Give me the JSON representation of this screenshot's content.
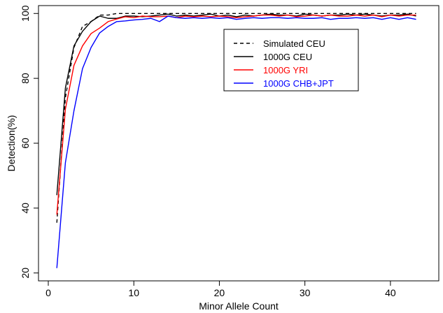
{
  "chart_data": {
    "type": "line",
    "title": "",
    "xlabel": "Minor Allele Count",
    "ylabel": "Detection(%)",
    "xlim": [
      0,
      45
    ],
    "ylim": [
      18,
      102
    ],
    "x_ticks": [
      0,
      10,
      20,
      30,
      40
    ],
    "y_ticks": [
      20,
      40,
      60,
      80,
      100
    ],
    "grid": false,
    "legend_position": "top-right",
    "x": [
      1,
      2,
      3,
      4,
      5,
      6,
      7,
      8,
      9,
      10,
      11,
      12,
      13,
      14,
      15,
      16,
      17,
      18,
      19,
      20,
      21,
      22,
      23,
      24,
      25,
      26,
      27,
      28,
      29,
      30,
      31,
      32,
      33,
      34,
      35,
      36,
      37,
      38,
      39,
      40,
      41,
      42,
      43
    ],
    "series": [
      {
        "name": "Simulated CEU",
        "color": "#000000",
        "dash": "dashed",
        "values": [
          35.5,
          74,
          89.5,
          96,
          97.5,
          99.5,
          99.5,
          100,
          100,
          100,
          100,
          100,
          100,
          100,
          100,
          100,
          100,
          100,
          100,
          100,
          100,
          100,
          100,
          100,
          100,
          100,
          100,
          100,
          100,
          100,
          100,
          100,
          100,
          100,
          100,
          100,
          100,
          100,
          100,
          100,
          100,
          100,
          100
        ]
      },
      {
        "name": "1000G CEU",
        "color": "#000000",
        "dash": "solid",
        "values": [
          44,
          77,
          90,
          94.5,
          97.5,
          99.2,
          98.5,
          98.5,
          99.2,
          99.2,
          99,
          99.2,
          99.5,
          99.8,
          99.2,
          99.5,
          99.2,
          99.5,
          99.8,
          99.2,
          99.5,
          99,
          99.5,
          99.2,
          99.5,
          99.8,
          99.5,
          99.5,
          99.2,
          99.8,
          99.5,
          99.2,
          99.5,
          99.5,
          99.8,
          99.5,
          99.8,
          99.5,
          99.2,
          99.5,
          99.5,
          99.8,
          99.2
        ]
      },
      {
        "name": "1000G YRI",
        "color": "#ff0000",
        "dash": "solid",
        "values": [
          38,
          70.5,
          84,
          90,
          93.8,
          95.5,
          97.5,
          98.3,
          99,
          98.7,
          99.2,
          99,
          99,
          99.2,
          98.7,
          99.2,
          99,
          99.2,
          99,
          99.2,
          99,
          98.7,
          99,
          99.2,
          99.5,
          99.5,
          99.2,
          99.5,
          99,
          99.2,
          99.5,
          99.2,
          99.5,
          99.2,
          99.2,
          99.5,
          99.2,
          99.5,
          99,
          99.5,
          99.2,
          99.5,
          99.5
        ]
      },
      {
        "name": "1000G CHB+JPT",
        "color": "#0000ff",
        "dash": "solid",
        "values": [
          21.5,
          54,
          70,
          83,
          89.5,
          94,
          96,
          97.5,
          97.7,
          98,
          98.2,
          98.5,
          97.5,
          99.2,
          98.7,
          98.5,
          98.7,
          98.5,
          98.7,
          98.5,
          98.7,
          98.2,
          98.5,
          98.7,
          98.5,
          98.7,
          98.7,
          98.5,
          98.7,
          98.5,
          98.5,
          98.7,
          98.2,
          98.5,
          98.5,
          98.7,
          98.5,
          98.7,
          98.2,
          98.7,
          98.2,
          98.7,
          98.2
        ]
      }
    ]
  }
}
